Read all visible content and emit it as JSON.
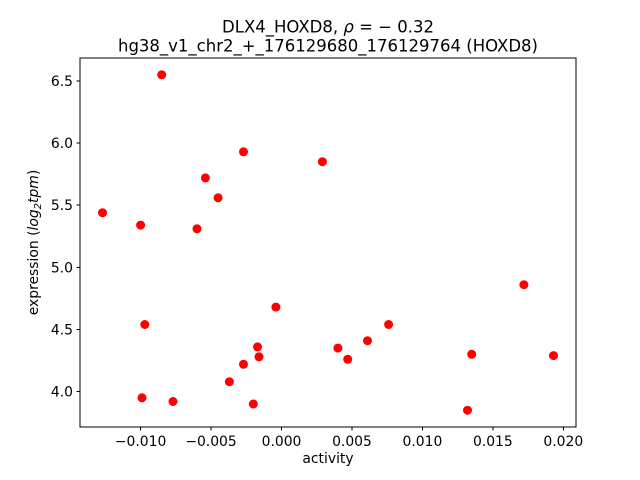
{
  "figure": {
    "title": {
      "prefix": "DLX4_HOXD8, ",
      "rho": "ρ",
      "suffix": " = − 0.32",
      "line2": "hg38_v1_chr2_+_176129680_176129764 (HOXD8)"
    },
    "xlabel": "activity",
    "ylabel": {
      "prefix": "expression (",
      "word1": "log",
      "sub": "2",
      "word2": "tpm",
      "suffix": ")"
    }
  },
  "chart_data": {
    "type": "scatter",
    "title": "DLX4_HOXD8, ρ = − 0.32",
    "subtitle": "hg38_v1_chr2_+_176129680_176129764 (HOXD8)",
    "xlabel": "activity",
    "ylabel": "expression (log2tpm)",
    "grid": false,
    "legend": false,
    "marker": {
      "shape": "circle",
      "color": "#ff0000",
      "radius_px": 4.5
    },
    "xlim": [
      -0.0143,
      0.0209
    ],
    "ylim": [
      3.715,
      6.685
    ],
    "x_ticks": {
      "values": [
        -0.01,
        -0.005,
        0.0,
        0.005,
        0.01,
        0.015,
        0.02
      ],
      "labels": [
        "−0.010",
        "−0.005",
        "0.000",
        "0.005",
        "0.010",
        "0.015",
        "0.020"
      ]
    },
    "y_ticks": {
      "values": [
        4.0,
        4.5,
        5.0,
        5.5,
        6.0,
        6.5
      ],
      "labels": [
        "4.0",
        "4.5",
        "5.0",
        "5.5",
        "6.0",
        "6.5"
      ]
    },
    "points": [
      [
        -0.0127,
        5.44
      ],
      [
        -0.01,
        5.34
      ],
      [
        -0.0099,
        3.95
      ],
      [
        -0.0097,
        4.54
      ],
      [
        -0.0085,
        6.55
      ],
      [
        -0.0077,
        3.92
      ],
      [
        -0.006,
        5.31
      ],
      [
        -0.0054,
        5.72
      ],
      [
        -0.0045,
        5.56
      ],
      [
        -0.0037,
        4.08
      ],
      [
        -0.0027,
        5.93
      ],
      [
        -0.0027,
        4.22
      ],
      [
        -0.002,
        3.9
      ],
      [
        -0.0017,
        4.36
      ],
      [
        -0.0016,
        4.28
      ],
      [
        -0.0004,
        4.68
      ],
      [
        0.0029,
        5.85
      ],
      [
        0.004,
        4.35
      ],
      [
        0.0047,
        4.26
      ],
      [
        0.0061,
        4.41
      ],
      [
        0.0076,
        4.54
      ],
      [
        0.0132,
        3.85
      ],
      [
        0.0135,
        4.3
      ],
      [
        0.0172,
        4.86
      ],
      [
        0.0193,
        4.29
      ]
    ]
  }
}
